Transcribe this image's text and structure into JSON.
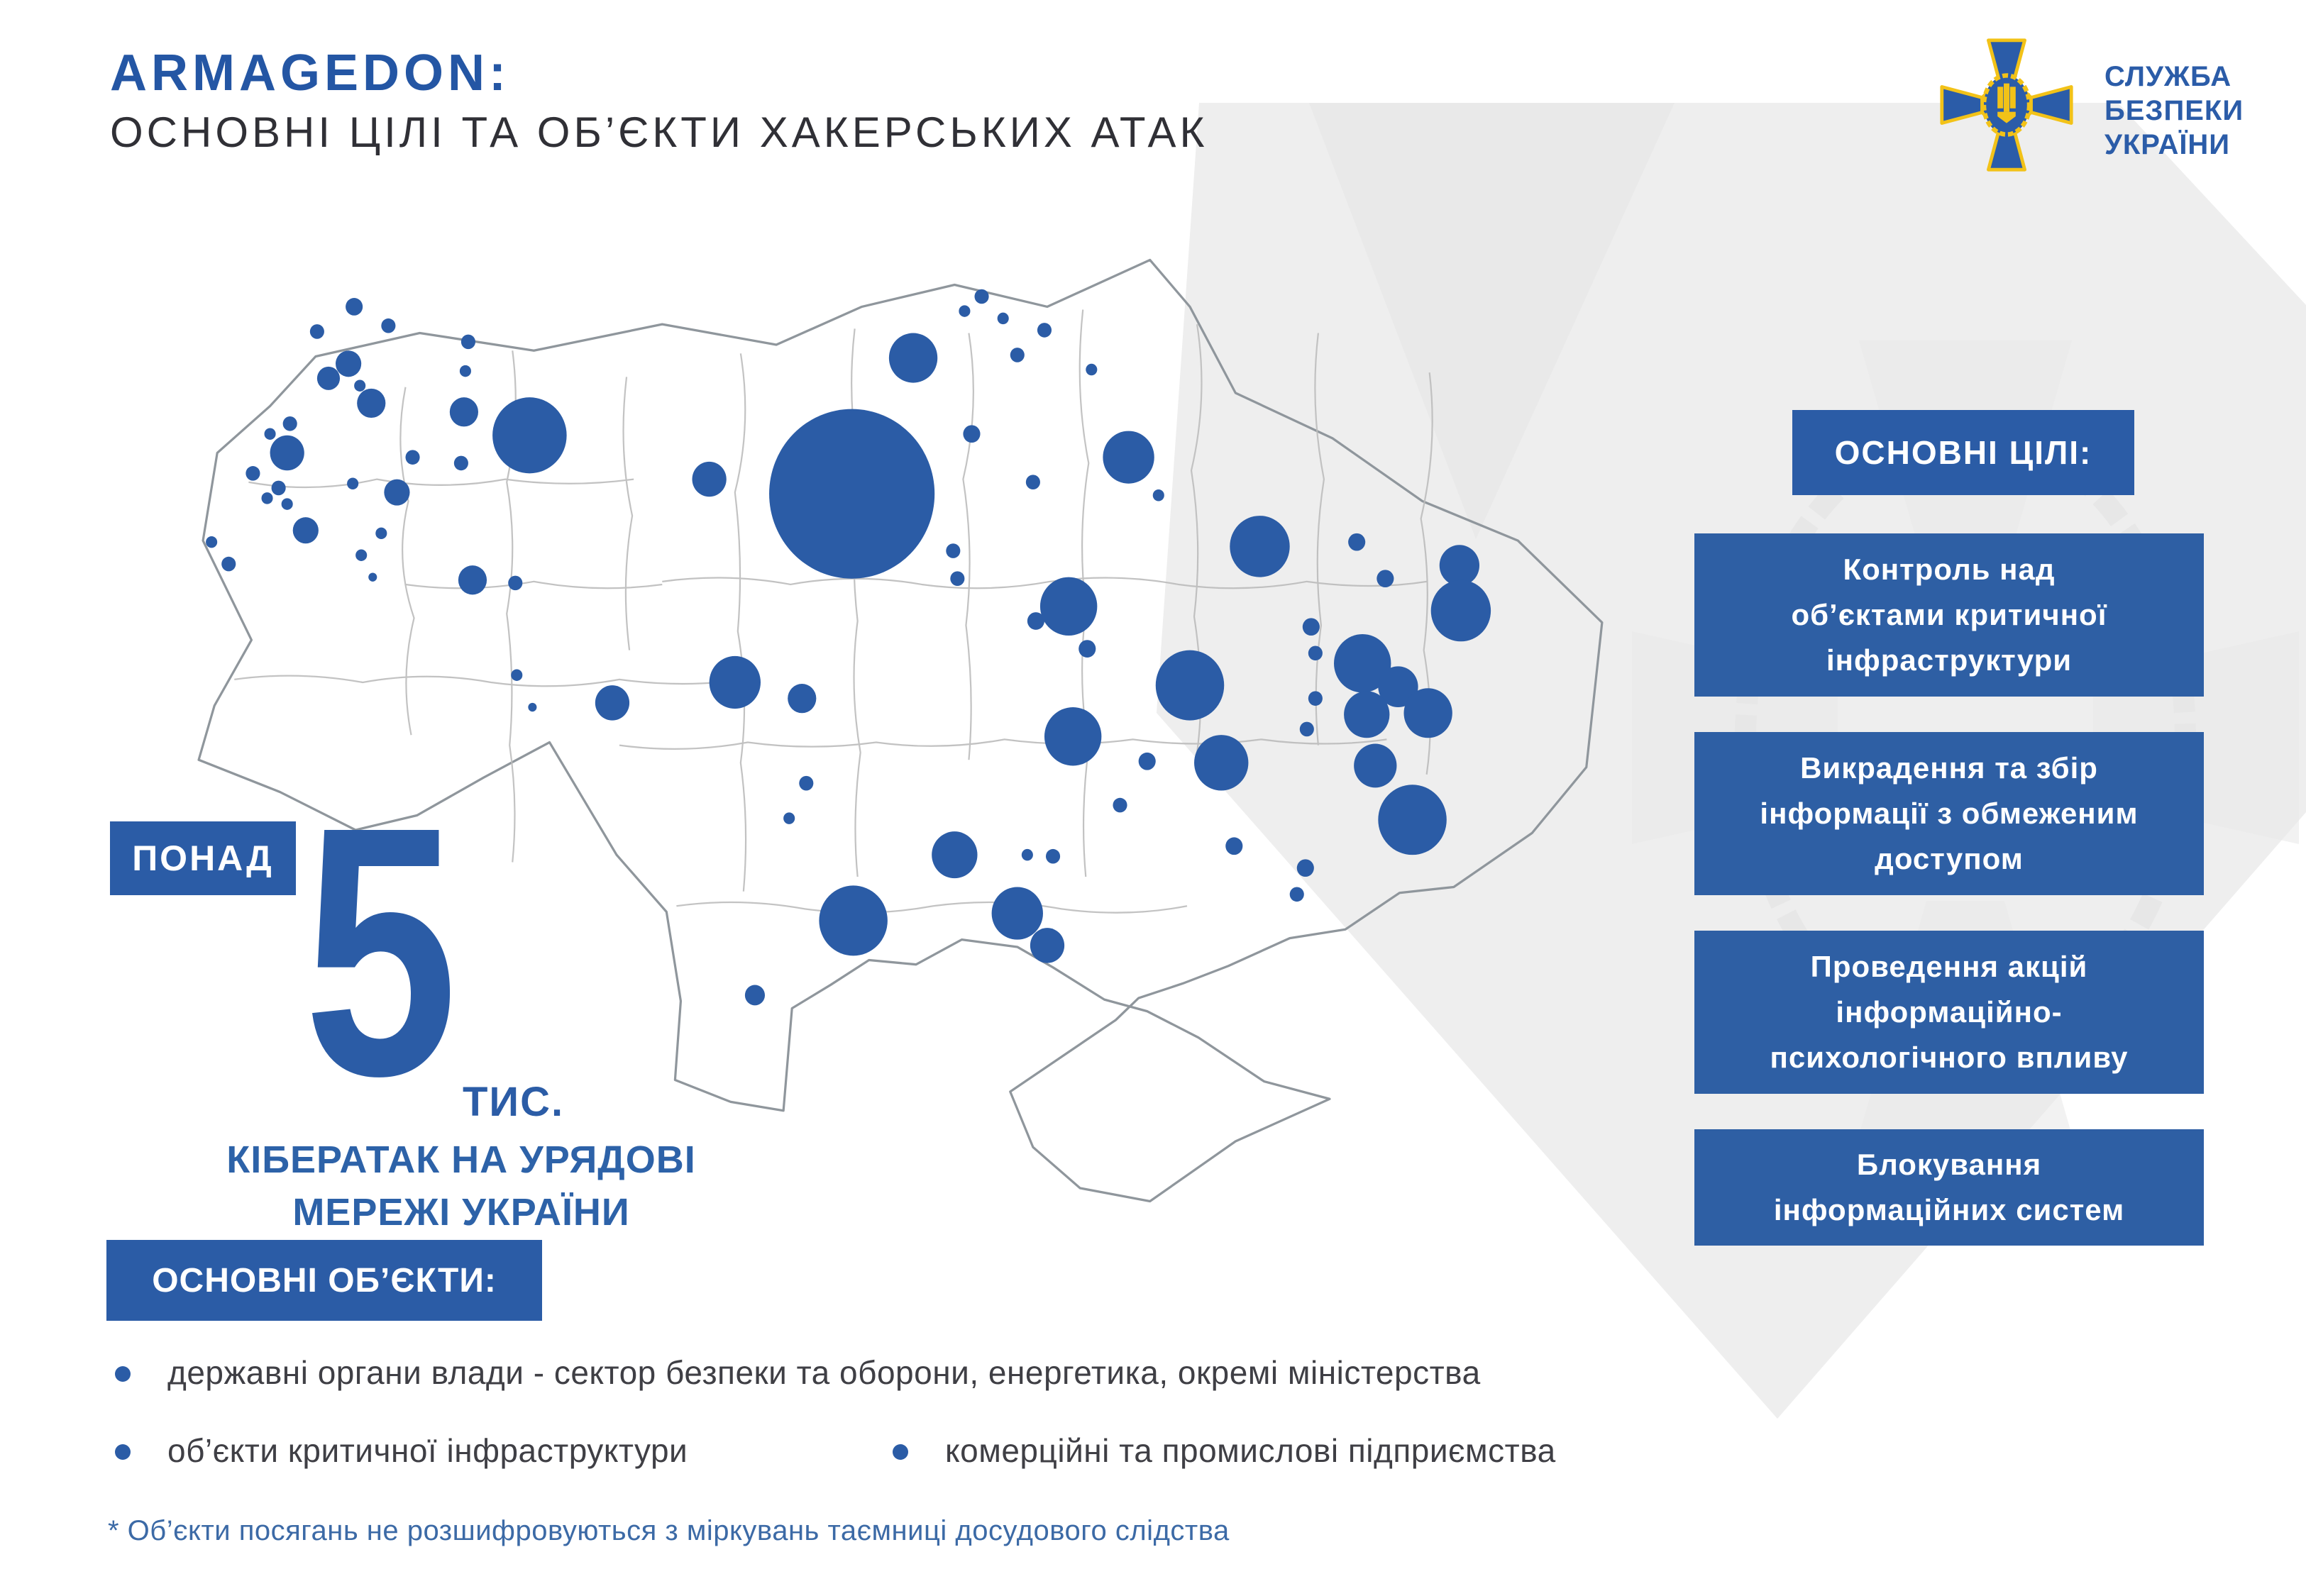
{
  "header": {
    "title_line1": "ARMAGEDON:",
    "title_line2": "ОСНОВНІ ЦІЛІ ТА ОБ’ЄКТИ ХАКЕРСЬКИХ АТАК"
  },
  "logo": {
    "org_line1": "СЛУЖБА",
    "org_line2": "БЕЗПЕКИ",
    "org_line3": "УКРАЇНИ"
  },
  "stat": {
    "label": "ПОНАД",
    "number": "5",
    "unit": "ТИС.",
    "caption": "КІБЕРАТАК НА УРЯДОВІ\nМЕРЕЖІ УКРАЇНИ"
  },
  "goals": {
    "header": "ОСНОВНІ ЦІЛІ:",
    "items": [
      "Контроль над\nоб’єктами критичної\nінфраструктури",
      "Викрадення та збір\nінформації з обмеженим\nдоступом",
      "Проведення акцій\nінформаційно-\nпсихологічного впливу",
      "Блокування\nінформаційних систем"
    ]
  },
  "objects": {
    "header": "ОСНОВНІ ОБ’ЄКТИ:",
    "items": [
      "державні органи влади - сектор безпеки та оборони, енергетика, окремі міністерства",
      "об’єкти критичної інфраструктури",
      "комерційні та промислові підприємства"
    ]
  },
  "footnote": "* Об’єкти посягань не розшифровуються з міркувань таємниці досудового слідства",
  "colors": {
    "primary_blue": "#2b5ca6",
    "title_blue": "#2456a4",
    "dark_text": "#303036",
    "footnote_blue": "#3c6aa6",
    "logo_yellow": "#f2c218",
    "map_border_gray": "#8f969c",
    "watermark_gray": "#eeeeee"
  },
  "map": {
    "region": "Ukraine",
    "bubble_meaning": "intensity of hacker attacks per region (size = relative number of attacks)",
    "bubbles": [
      [
        114,
        40,
        6
      ],
      [
        88,
        57,
        5
      ],
      [
        138,
        53,
        5
      ],
      [
        110,
        79,
        9
      ],
      [
        96,
        89,
        8
      ],
      [
        118,
        94,
        4
      ],
      [
        126,
        106,
        10
      ],
      [
        69,
        120,
        5
      ],
      [
        55,
        127,
        4
      ],
      [
        67,
        140,
        12
      ],
      [
        43,
        154,
        5
      ],
      [
        61,
        164,
        5
      ],
      [
        53,
        171,
        4
      ],
      [
        67,
        175,
        4
      ],
      [
        80,
        193,
        9
      ],
      [
        14,
        201,
        4
      ],
      [
        26,
        216,
        5
      ],
      [
        194,
        64,
        5
      ],
      [
        192,
        84,
        4
      ],
      [
        191,
        112,
        10
      ],
      [
        189,
        147,
        5
      ],
      [
        155,
        143,
        5
      ],
      [
        113,
        161,
        4
      ],
      [
        144,
        167,
        9
      ],
      [
        133,
        195,
        4
      ],
      [
        119,
        210,
        4
      ],
      [
        127,
        225,
        3
      ],
      [
        197,
        227,
        10
      ],
      [
        227,
        229,
        5
      ],
      [
        237,
        128,
        26
      ],
      [
        228,
        292,
        4
      ],
      [
        239,
        314,
        3
      ],
      [
        295,
        311,
        12
      ],
      [
        381,
        297,
        18
      ],
      [
        428,
        308,
        10
      ],
      [
        363,
        158,
        12
      ],
      [
        463,
        168,
        58
      ],
      [
        506,
        75,
        17
      ],
      [
        547,
        127,
        6
      ],
      [
        590,
        160,
        5
      ],
      [
        534,
        207,
        5
      ],
      [
        537,
        226,
        5
      ],
      [
        554,
        33,
        5
      ],
      [
        542,
        43,
        4
      ],
      [
        569,
        48,
        4
      ],
      [
        598,
        56,
        5
      ],
      [
        579,
        73,
        5
      ],
      [
        631,
        83,
        4
      ],
      [
        657,
        143,
        18
      ],
      [
        678,
        169,
        4
      ],
      [
        749,
        204,
        21
      ],
      [
        817,
        201,
        6
      ],
      [
        837,
        226,
        6
      ],
      [
        889,
        217,
        14
      ],
      [
        890,
        248,
        21
      ],
      [
        785,
        259,
        6
      ],
      [
        788,
        277,
        5
      ],
      [
        821,
        284,
        20
      ],
      [
        846,
        300,
        14
      ],
      [
        824,
        319,
        16
      ],
      [
        867,
        318,
        17
      ],
      [
        788,
        308,
        5
      ],
      [
        782,
        329,
        5
      ],
      [
        830,
        354,
        15
      ],
      [
        856,
        391,
        24
      ],
      [
        731,
        409,
        6
      ],
      [
        781,
        424,
        6
      ],
      [
        775,
        442,
        5
      ],
      [
        615,
        245,
        20
      ],
      [
        592,
        255,
        6
      ],
      [
        628,
        274,
        6
      ],
      [
        700,
        299,
        24
      ],
      [
        618,
        334,
        20
      ],
      [
        670,
        351,
        6
      ],
      [
        722,
        352,
        19
      ],
      [
        651,
        381,
        5
      ],
      [
        431,
        366,
        5
      ],
      [
        419,
        390,
        4
      ],
      [
        535,
        415,
        16
      ],
      [
        586,
        415,
        4
      ],
      [
        604,
        416,
        5
      ],
      [
        464,
        460,
        24
      ],
      [
        579,
        455,
        18
      ],
      [
        600,
        477,
        12
      ],
      [
        395,
        511,
        7
      ]
    ]
  }
}
